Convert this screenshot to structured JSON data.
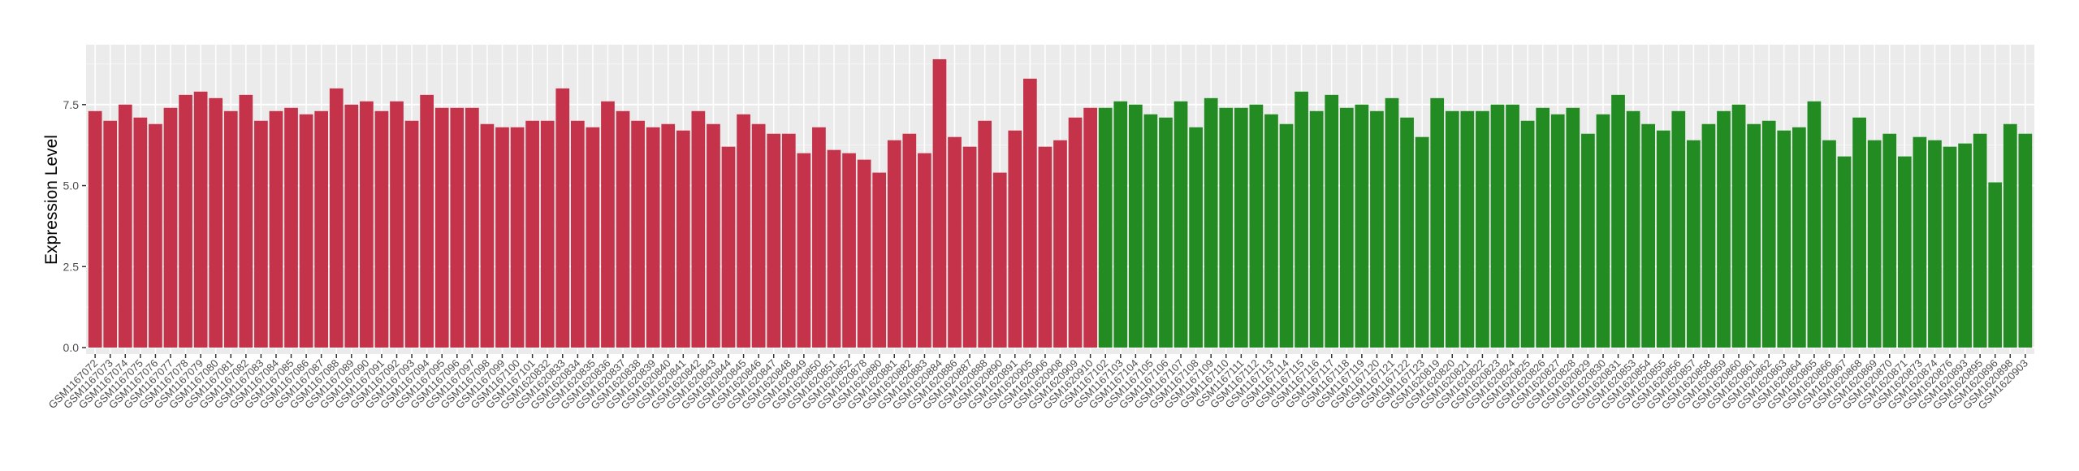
{
  "chart_data": {
    "type": "bar",
    "y_label": "Expression Level",
    "categories": [
      "GSM1167072",
      "GSM1167073",
      "GSM1167074",
      "GSM1167075",
      "GSM1167076",
      "GSM1167077",
      "GSM1167078",
      "GSM1167079",
      "GSM1167080",
      "GSM1167081",
      "GSM1167082",
      "GSM1167083",
      "GSM1167084",
      "GSM1167085",
      "GSM1167086",
      "GSM1167087",
      "GSM1167088",
      "GSM1167089",
      "GSM1167090",
      "GSM1167091",
      "GSM1167092",
      "GSM1167093",
      "GSM1167094",
      "GSM1167095",
      "GSM1167096",
      "GSM1167097",
      "GSM1167098",
      "GSM1167099",
      "GSM1167100",
      "GSM1167101",
      "GSM1620832",
      "GSM1620833",
      "GSM1620834",
      "GSM1620835",
      "GSM1620836",
      "GSM1620837",
      "GSM1620838",
      "GSM1620839",
      "GSM1620840",
      "GSM1620841",
      "GSM1620842",
      "GSM1620843",
      "GSM1620844",
      "GSM1620845",
      "GSM1620846",
      "GSM1620847",
      "GSM1620848",
      "GSM1620849",
      "GSM1620850",
      "GSM1620851",
      "GSM1620852",
      "GSM1620878",
      "GSM1620880",
      "GSM1620881",
      "GSM1620882",
      "GSM1620883",
      "GSM1620884",
      "GSM1620886",
      "GSM1620887",
      "GSM1620888",
      "GSM1620890",
      "GSM1620891",
      "GSM1620905",
      "GSM1620906",
      "GSM1620908",
      "GSM1620909",
      "GSM1620910",
      "GSM1167102",
      "GSM1167103",
      "GSM1167104",
      "GSM1167105",
      "GSM1167106",
      "GSM1167107",
      "GSM1167108",
      "GSM1167109",
      "GSM1167110",
      "GSM1167111",
      "GSM1167112",
      "GSM1167113",
      "GSM1167114",
      "GSM1167115",
      "GSM1167116",
      "GSM1167117",
      "GSM1167118",
      "GSM1167119",
      "GSM1167120",
      "GSM1167121",
      "GSM1167122",
      "GSM1167123",
      "GSM1620819",
      "GSM1620820",
      "GSM1620821",
      "GSM1620822",
      "GSM1620823",
      "GSM1620824",
      "GSM1620825",
      "GSM1620826",
      "GSM1620827",
      "GSM1620828",
      "GSM1620829",
      "GSM1620830",
      "GSM1620831",
      "GSM1620853",
      "GSM1620854",
      "GSM1620855",
      "GSM1620856",
      "GSM1620857",
      "GSM1620858",
      "GSM1620859",
      "GSM1620860",
      "GSM1620861",
      "GSM1620862",
      "GSM1620863",
      "GSM1620864",
      "GSM1620865",
      "GSM1620866",
      "GSM1620867",
      "GSM1620868",
      "GSM1620869",
      "GSM1620870",
      "GSM1620871",
      "GSM1620873",
      "GSM1620874",
      "GSM1620876",
      "GSM1620893",
      "GSM1620895",
      "GSM1620896",
      "GSM1620898",
      "GSM1620903"
    ],
    "series": [
      {
        "color": "#c5334b",
        "values": [
          7.3,
          7.0,
          7.5,
          7.1,
          6.9,
          7.4,
          7.8,
          7.9,
          7.7,
          7.3,
          7.8,
          7.0,
          7.3,
          7.4,
          7.2,
          7.3,
          8.0,
          7.5,
          7.6,
          7.3,
          7.6,
          7.0,
          7.8,
          7.4,
          7.4,
          7.4,
          6.9,
          6.8,
          6.8,
          7.0,
          7.0,
          8.0,
          7.0,
          6.8,
          7.6,
          7.3,
          7.0,
          6.8,
          6.9,
          6.7,
          7.3,
          6.9,
          6.2,
          7.2,
          6.9,
          6.6,
          6.6,
          6.0,
          6.8,
          6.1,
          6.0,
          5.8,
          5.4,
          6.4,
          6.6,
          6.0,
          8.9,
          6.5,
          6.2,
          7.0,
          5.4,
          6.7,
          8.3,
          6.2,
          6.4,
          7.1,
          7.4,
          null,
          null,
          null,
          null,
          null,
          null,
          null,
          null,
          null,
          null,
          null,
          null,
          null,
          null,
          null,
          null,
          null,
          null,
          null,
          null,
          null,
          null,
          null,
          null,
          null,
          null,
          null,
          null,
          null,
          null,
          null,
          null,
          null,
          null,
          null,
          null,
          null,
          null,
          null,
          null,
          null,
          null,
          null,
          null,
          null,
          null,
          null,
          null,
          null,
          null,
          null,
          null,
          null,
          null,
          null,
          null,
          null,
          null,
          null,
          null,
          null,
          null
        ]
      },
      {
        "color": "#228b22",
        "values": [
          null,
          null,
          null,
          null,
          null,
          null,
          null,
          null,
          null,
          null,
          null,
          null,
          null,
          null,
          null,
          null,
          null,
          null,
          null,
          null,
          null,
          null,
          null,
          null,
          null,
          null,
          null,
          null,
          null,
          null,
          null,
          null,
          null,
          null,
          null,
          null,
          null,
          null,
          null,
          null,
          null,
          null,
          null,
          null,
          null,
          null,
          null,
          null,
          null,
          null,
          null,
          null,
          null,
          null,
          null,
          null,
          null,
          null,
          null,
          null,
          null,
          null,
          null,
          null,
          null,
          null,
          null,
          7.4,
          7.6,
          7.5,
          7.2,
          7.1,
          7.6,
          6.8,
          7.7,
          7.4,
          7.4,
          7.5,
          7.2,
          6.9,
          7.9,
          7.3,
          7.8,
          7.4,
          7.5,
          7.3,
          7.7,
          7.1,
          6.5,
          7.7,
          7.3,
          7.3,
          7.3,
          7.5,
          7.5,
          7.0,
          7.4,
          7.2,
          7.4,
          6.6,
          7.2,
          7.8,
          7.3,
          6.9,
          6.7,
          7.3,
          6.4,
          6.9,
          7.3,
          7.5,
          6.9,
          7.0,
          6.7,
          6.8,
          7.6,
          6.4,
          5.9,
          7.1,
          6.4,
          6.6,
          5.9,
          6.5,
          6.4,
          6.2,
          6.3,
          6.6,
          5.1,
          6.9,
          6.6
        ]
      }
    ],
    "ylim": [
      -0.2,
      9.35
    ],
    "yticks": [
      {
        "value": 0,
        "label": "0.0"
      },
      {
        "value": 2.5,
        "label": "2.5"
      },
      {
        "value": 5,
        "label": "5.0"
      },
      {
        "value": 7.5,
        "label": "7.5"
      }
    ],
    "grid": true
  }
}
